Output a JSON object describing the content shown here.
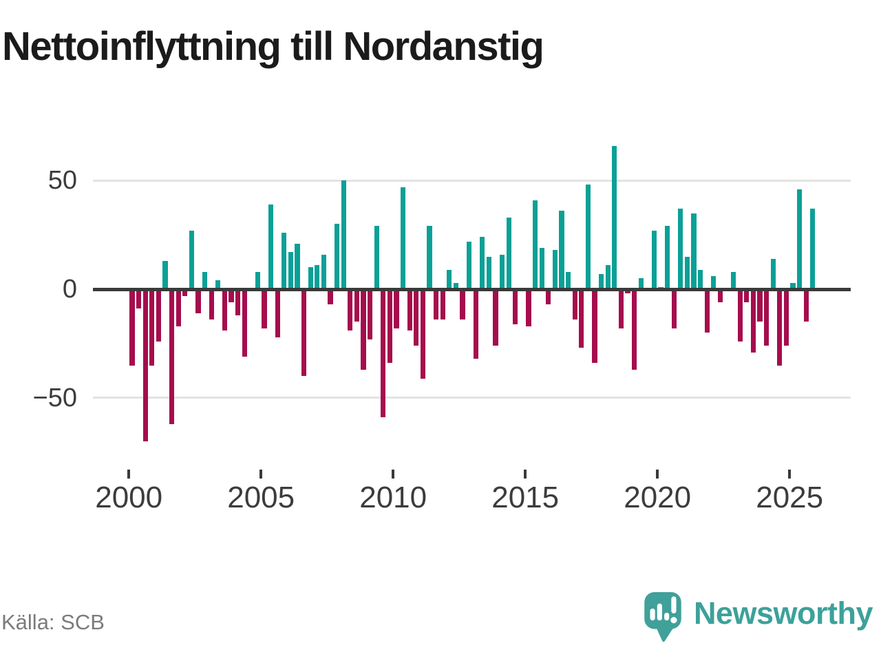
{
  "title": "Nettoinflyttning till Nordanstig",
  "source": "Källa: SCB",
  "logo": {
    "text": "Newsworthy"
  },
  "colors": {
    "positive": "#0ba096",
    "negative": "#a50d4d",
    "zero_line": "#3a3a3a",
    "grid": "#e3e3e3",
    "axis_text": "#3c3c3c",
    "title_text": "#1b1b1b",
    "source_text": "#7b7b7b",
    "logo_teal": "#40a09a"
  },
  "chart_data": {
    "type": "bar",
    "title": "Nettoinflyttning till Nordanstig",
    "frequency": "quarterly",
    "start_year": 2000,
    "end_year": 2025,
    "values": [
      -35,
      -9,
      -70,
      -35,
      -24,
      13,
      -62,
      -17,
      -3,
      27,
      -11,
      8,
      -14,
      4,
      -19,
      -6,
      -12,
      -31,
      0,
      8,
      -18,
      39,
      -22,
      26,
      17,
      21,
      -40,
      10,
      11,
      16,
      -7,
      30,
      50,
      -19,
      -15,
      -37,
      -23,
      29,
      -59,
      -34,
      -18,
      47,
      -19,
      -26,
      -41,
      29,
      -14,
      -14,
      9,
      3,
      -14,
      22,
      -32,
      24,
      15,
      -26,
      16,
      33,
      -16,
      0,
      -17,
      41,
      19,
      -7,
      18,
      36,
      8,
      -14,
      -27,
      48,
      -34,
      7,
      11,
      66,
      -18,
      -2,
      -37,
      5,
      -1,
      27,
      1,
      29,
      -18,
      37,
      15,
      35,
      9,
      -20,
      6,
      -6,
      0,
      8,
      -24,
      -6,
      -29,
      -15,
      -26,
      14,
      -35,
      -26,
      3,
      46,
      -15,
      37
    ],
    "yticks": [
      50,
      0,
      -50
    ],
    "ytick_labels": [
      "50",
      "0",
      "−50"
    ],
    "xticks": [
      2000,
      2005,
      2010,
      2015,
      2020,
      2025
    ],
    "xtick_labels": [
      "2000",
      "2005",
      "2010",
      "2015",
      "2020",
      "2025"
    ],
    "ylim": [
      -78,
      72
    ],
    "grid": true,
    "legend": "none",
    "positive_color": "#0ba096",
    "negative_color": "#a50d4d"
  }
}
